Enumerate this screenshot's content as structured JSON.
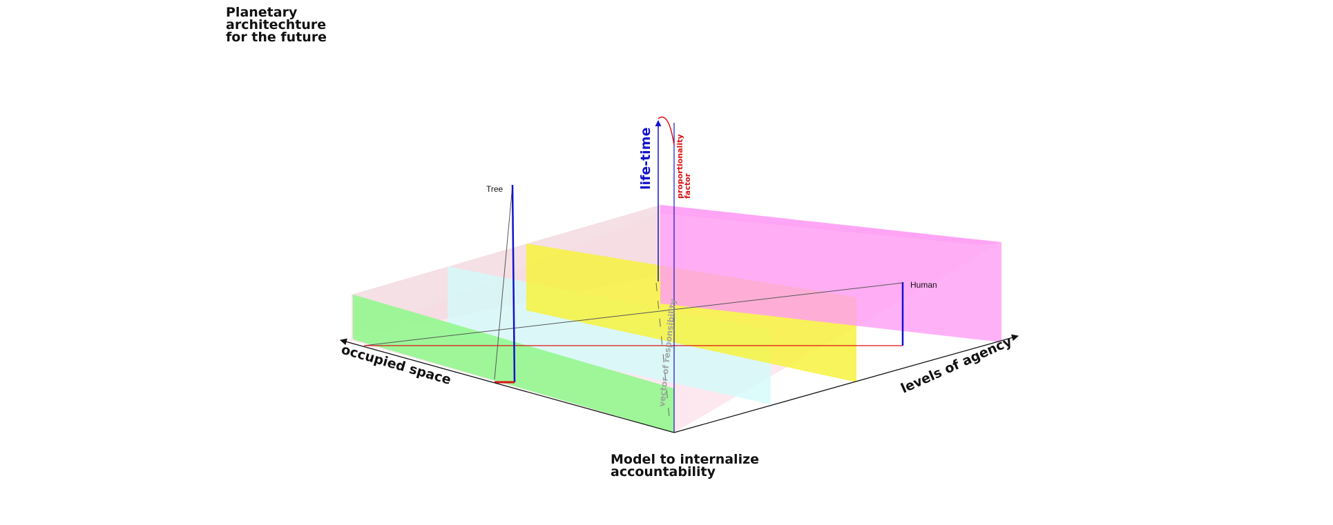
{
  "page": {
    "title_lines": [
      "Planetary",
      "architechture",
      "for the future"
    ],
    "caption_lines": [
      "Model to internalize",
      "accountability"
    ]
  },
  "diagram": {
    "axes": {
      "occupied_space": "occupied space",
      "levels_of_agency": "levels of agency",
      "life_time": "life-time",
      "proportionality": [
        "proportionality",
        "factor"
      ],
      "responsibility": "vector of responsibility"
    },
    "markers": {
      "tree": "Tree",
      "human": "Human"
    },
    "colors": {
      "floor": "#fde6ee",
      "back_wall": "#f3dbe1",
      "green_plane": "#93f78f",
      "cyan_plane": "#d3fafa",
      "yellow_plane": "#f7f23e",
      "magenta_plane": "#ff9df5",
      "lifetime_blue": "#1212cc",
      "proportion_red": "#dd1111",
      "axis_black": "#111111"
    }
  }
}
